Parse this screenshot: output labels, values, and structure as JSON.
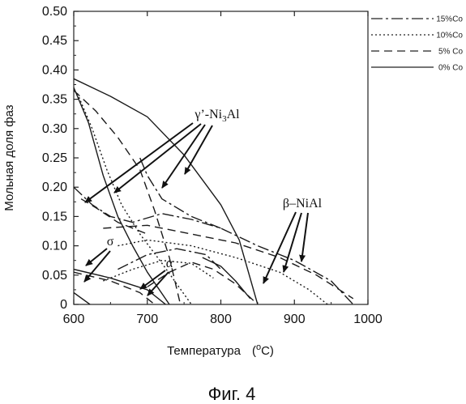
{
  "chart_data": {
    "type": "line",
    "xlabel": "Температура",
    "xlabel_unit": "(",
    "xlabel_unit_sup": "o",
    "xlabel_unit_end": "C)",
    "ylabel": "Мольная доля фаз",
    "xlim": [
      600,
      1000
    ],
    "ylim": [
      0,
      0.5
    ],
    "x_ticks": [
      600,
      700,
      800,
      900,
      1000
    ],
    "y_ticks": [
      0,
      0.05,
      0.1,
      0.15,
      0.2,
      0.25,
      0.3,
      0.35,
      0.4,
      0.45,
      0.5
    ],
    "x_tick_labels": [
      "600",
      "700",
      "800",
      "900",
      "1000"
    ],
    "y_tick_labels": [
      "0",
      "0.05",
      "0.10",
      "0.15",
      "0.20",
      "0.25",
      "0.30",
      "0.35",
      "0.40",
      "0.45",
      "0.50"
    ],
    "grid": false,
    "legend_position": "outside-top-right",
    "legend": [
      {
        "label": "15%Co",
        "dash": "14,4,3,4"
      },
      {
        "label": "10%Co",
        "dash": "2,3"
      },
      {
        "label": "5%  Co",
        "dash": "10,6"
      },
      {
        "label": "0%  Co",
        "dash": ""
      }
    ],
    "series": [
      {
        "group": "0% Co",
        "phase": "γ'",
        "dash": "",
        "points": [
          [
            600,
            0.385
          ],
          [
            650,
            0.355
          ],
          [
            700,
            0.32
          ],
          [
            750,
            0.255
          ],
          [
            800,
            0.17
          ],
          [
            825,
            0.11
          ],
          [
            850,
            0.0
          ]
        ]
      },
      {
        "group": "0% Co",
        "phase": "β",
        "dash": "",
        "points": [
          [
            600,
            0.37
          ],
          [
            620,
            0.31
          ],
          [
            640,
            0.22
          ],
          [
            660,
            0.15
          ],
          [
            680,
            0.1
          ],
          [
            700,
            0.055
          ],
          [
            730,
            0.0
          ]
        ]
      },
      {
        "group": "0% Co",
        "phase": "σ",
        "dash": "",
        "points": [
          [
            600,
            0.06
          ],
          [
            650,
            0.045
          ],
          [
            700,
            0.025
          ],
          [
            725,
            0.0
          ]
        ]
      },
      {
        "group": "0% Co",
        "phase": "α",
        "dash": "",
        "points": [
          [
            600,
            0.02
          ],
          [
            622,
            0.0
          ]
        ]
      },
      {
        "group": "0% Co",
        "phase": "γ' (high T)",
        "dash": "",
        "points": [
          [
            775,
            0.08
          ],
          [
            800,
            0.065
          ],
          [
            820,
            0.04
          ],
          [
            840,
            0.01
          ]
        ]
      },
      {
        "group": "5% Co",
        "phase": "γ'",
        "dash": "10,6",
        "points": [
          [
            600,
            0.365
          ],
          [
            630,
            0.33
          ],
          [
            660,
            0.285
          ],
          [
            690,
            0.23
          ],
          [
            710,
            0.16
          ],
          [
            730,
            0.08
          ],
          [
            745,
            0.0
          ]
        ]
      },
      {
        "group": "5% Co",
        "phase": "β",
        "dash": "10,6",
        "points": [
          [
            640,
            0.13
          ],
          [
            700,
            0.135
          ],
          [
            760,
            0.12
          ],
          [
            820,
            0.105
          ],
          [
            880,
            0.08
          ],
          [
            930,
            0.05
          ],
          [
            980,
            0.01
          ]
        ]
      },
      {
        "group": "5% Co",
        "phase": "rising",
        "dash": "10,6",
        "points": [
          [
            610,
            0.18
          ],
          [
            630,
            0.165
          ],
          [
            660,
            0.14
          ],
          [
            700,
            0.12
          ]
        ]
      },
      {
        "group": "5% Co",
        "phase": "σ",
        "dash": "10,6",
        "points": [
          [
            600,
            0.055
          ],
          [
            650,
            0.04
          ],
          [
            690,
            0.02
          ],
          [
            710,
            0.0
          ]
        ]
      },
      {
        "group": "5% Co",
        "phase": "α",
        "dash": "10,6",
        "points": [
          [
            700,
            0.03
          ],
          [
            730,
            0.055
          ],
          [
            760,
            0.072
          ],
          [
            790,
            0.06
          ],
          [
            820,
            0.035
          ],
          [
            850,
            0.0
          ]
        ]
      },
      {
        "group": "10% Co",
        "phase": "γ'",
        "dash": "2,3",
        "points": [
          [
            605,
            0.36
          ],
          [
            625,
            0.3
          ],
          [
            645,
            0.23
          ],
          [
            665,
            0.17
          ],
          [
            690,
            0.12
          ],
          [
            720,
            0.07
          ],
          [
            760,
            0.0
          ]
        ]
      },
      {
        "group": "10% Co",
        "phase": "β",
        "dash": "2,3",
        "points": [
          [
            660,
            0.1
          ],
          [
            700,
            0.11
          ],
          [
            760,
            0.1
          ],
          [
            820,
            0.08
          ],
          [
            880,
            0.055
          ],
          [
            920,
            0.025
          ],
          [
            945,
            0.0
          ]
        ]
      },
      {
        "group": "10% Co",
        "phase": "low",
        "dash": "2,3",
        "points": [
          [
            640,
            0.04
          ],
          [
            680,
            0.06
          ],
          [
            720,
            0.075
          ],
          [
            760,
            0.07
          ],
          [
            790,
            0.045
          ]
        ]
      },
      {
        "group": "15% Co",
        "phase": "γ'",
        "dash": "14,4,3,4",
        "points": [
          [
            600,
            0.2
          ],
          [
            625,
            0.17
          ],
          [
            650,
            0.15
          ],
          [
            680,
            0.14
          ],
          [
            720,
            0.155
          ],
          [
            760,
            0.145
          ],
          [
            800,
            0.13
          ],
          [
            850,
            0.1
          ],
          [
            900,
            0.075
          ],
          [
            950,
            0.04
          ],
          [
            980,
            0.0
          ]
        ]
      },
      {
        "group": "15% Co",
        "phase": "β",
        "dash": "14,4,3,4",
        "points": [
          [
            690,
            0.25
          ],
          [
            700,
            0.22
          ],
          [
            720,
            0.18
          ],
          [
            760,
            0.15
          ],
          [
            800,
            0.13
          ]
        ]
      },
      {
        "group": "15% Co",
        "phase": "low",
        "dash": "14,4,3,4",
        "points": [
          [
            660,
            0.06
          ],
          [
            700,
            0.085
          ],
          [
            740,
            0.095
          ],
          [
            780,
            0.085
          ],
          [
            800,
            0.06
          ]
        ]
      }
    ],
    "annotations": [
      {
        "label": "γ’-Ni₃Al",
        "label_main": "γ’-Ni",
        "label_sub": "3",
        "label_end": "Al"
      },
      {
        "label": "β–NiAl"
      },
      {
        "label": "σ"
      },
      {
        "label": "α"
      }
    ],
    "caption": "Фиг. 4"
  }
}
